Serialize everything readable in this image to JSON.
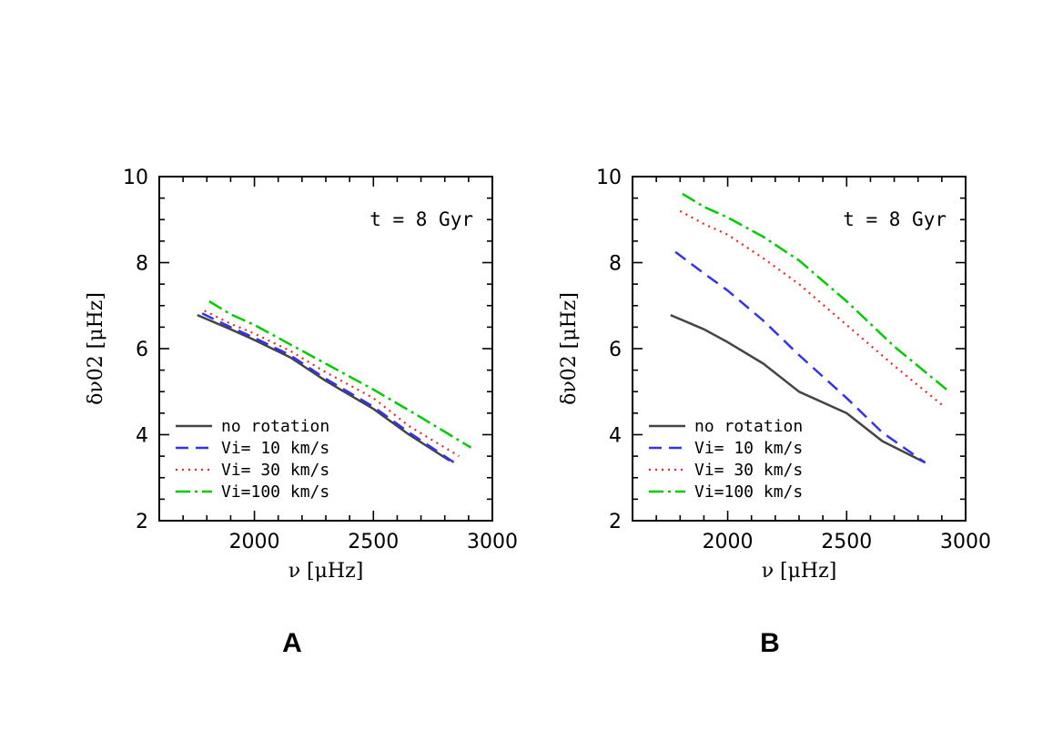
{
  "chart_data": [
    {
      "type": "line",
      "panel_label": "A",
      "annotation": "t = 8 Gyr",
      "xlabel": "ν [μHz]",
      "ylabel": "δν02 [μHz]",
      "xlim": [
        1600,
        3000
      ],
      "ylim": [
        2,
        10
      ],
      "xticks": [
        2000,
        2500,
        3000
      ],
      "yticks": [
        2,
        4,
        6,
        8,
        10
      ],
      "legend_position": "bottom-left",
      "series": [
        {
          "name": "no rotation",
          "style": "solid",
          "color": "#444444",
          "x": [
            1760,
            1900,
            2000,
            2150,
            2300,
            2500,
            2650,
            2820
          ],
          "y": [
            6.78,
            6.45,
            6.2,
            5.8,
            5.25,
            4.6,
            4.0,
            3.4
          ]
        },
        {
          "name": "Vi= 10 km/s",
          "style": "dashed",
          "color": "#3333ee",
          "x": [
            1780,
            1900,
            2000,
            2150,
            2300,
            2500,
            2650,
            2840
          ],
          "y": [
            6.82,
            6.5,
            6.25,
            5.85,
            5.3,
            4.65,
            4.05,
            3.35
          ]
        },
        {
          "name": "Vi= 30 km/s",
          "style": "dotted",
          "color": "#ee2222",
          "x": [
            1790,
            1900,
            2000,
            2150,
            2300,
            2500,
            2650,
            2860
          ],
          "y": [
            6.88,
            6.58,
            6.35,
            5.95,
            5.45,
            4.85,
            4.2,
            3.5
          ]
        },
        {
          "name": "Vi=100 km/s",
          "style": "dashdot",
          "color": "#00cc00",
          "x": [
            1810,
            1900,
            2000,
            2150,
            2300,
            2500,
            2700,
            2910
          ],
          "y": [
            7.1,
            6.8,
            6.55,
            6.1,
            5.65,
            5.05,
            4.4,
            3.7
          ]
        }
      ]
    },
    {
      "type": "line",
      "panel_label": "B",
      "annotation": "t = 8 Gyr",
      "xlabel": "ν [μHz]",
      "ylabel": "δν02 [μHz]",
      "xlim": [
        1600,
        3000
      ],
      "ylim": [
        2,
        10
      ],
      "xticks": [
        2000,
        2500,
        3000
      ],
      "yticks": [
        2,
        4,
        6,
        8,
        10
      ],
      "legend_position": "bottom-left",
      "series": [
        {
          "name": "no rotation",
          "style": "solid",
          "color": "#444444",
          "x": [
            1760,
            1900,
            2000,
            2150,
            2300,
            2500,
            2650,
            2830
          ],
          "y": [
            6.78,
            6.45,
            6.15,
            5.65,
            5.0,
            4.5,
            3.85,
            3.35
          ]
        },
        {
          "name": "Vi= 10 km/s",
          "style": "dashed",
          "color": "#3333ee",
          "x": [
            1780,
            1900,
            2000,
            2150,
            2300,
            2500,
            2650,
            2830
          ],
          "y": [
            8.25,
            7.75,
            7.35,
            6.65,
            5.85,
            4.85,
            4.05,
            3.35
          ]
        },
        {
          "name": "Vi= 30 km/s",
          "style": "dotted",
          "color": "#ee2222",
          "x": [
            1800,
            1900,
            2000,
            2150,
            2300,
            2500,
            2700,
            2910
          ],
          "y": [
            9.2,
            8.9,
            8.65,
            8.1,
            7.5,
            6.55,
            5.6,
            4.65
          ]
        },
        {
          "name": "Vi=100 km/s",
          "style": "dashdot",
          "color": "#00cc00",
          "x": [
            1810,
            1900,
            2000,
            2150,
            2300,
            2500,
            2700,
            2920
          ],
          "y": [
            9.6,
            9.3,
            9.05,
            8.6,
            8.05,
            7.1,
            6.05,
            5.05
          ]
        }
      ]
    }
  ]
}
